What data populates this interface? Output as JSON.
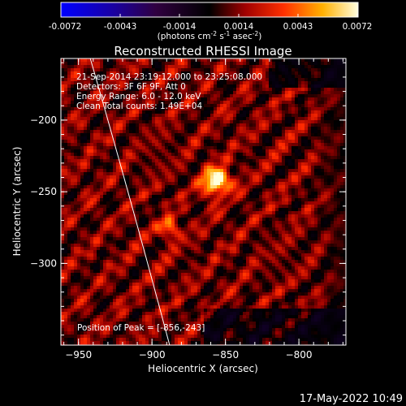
{
  "chart_data": {
    "type": "heatmap",
    "title": "Reconstructed RHESSI Image",
    "colorbar": {
      "ticks": [
        "-0.0072",
        "-0.0043",
        "-0.0014",
        "0.0014",
        "0.0043",
        "0.0072"
      ],
      "range": [
        -0.0072,
        0.0072
      ],
      "units_main": "(photons cm",
      "units_exp1": "-2",
      "units_mid": " s",
      "units_exp2": "-1",
      "units_end": " asec",
      "units_exp3": "-2",
      "units_close": ")"
    },
    "xlabel": "Heliocentric X (arcsec)",
    "ylabel": "Heliocentric Y (arcsec)",
    "xlim": [
      -962,
      -768
    ],
    "ylim": [
      -357,
      -157
    ],
    "xticks": [
      {
        "v": -950,
        "label": "−950"
      },
      {
        "v": -900,
        "label": "−900"
      },
      {
        "v": -850,
        "label": "−850"
      },
      {
        "v": -800,
        "label": "−800"
      }
    ],
    "yticks": [
      {
        "v": -200,
        "label": "−200"
      },
      {
        "v": -250,
        "label": "−250"
      },
      {
        "v": -300,
        "label": "−300"
      }
    ],
    "info_lines": [
      "21-Sep-2014 23:19:12.000 to 23:25:08.000",
      "Detectors: 3F 6F 9F, Att 0",
      "Energy Range: 6.0 - 12.0 keV",
      "Clean     Total counts: 1.49E+04"
    ],
    "peak": {
      "label": "Position of Peak = ",
      "value": "[-856,-243]",
      "x": -856,
      "y": -243
    },
    "sources": [
      {
        "x": -856,
        "y": -243,
        "intensity": 1.0
      },
      {
        "x": -888,
        "y": -276,
        "intensity": 0.55
      }
    ],
    "limb_curve": [
      [
        -942,
        -157
      ],
      [
        -915,
        -255
      ],
      [
        -888,
        -357
      ]
    ]
  },
  "footer": {
    "timestamp": "17-May-2022 10:49"
  }
}
